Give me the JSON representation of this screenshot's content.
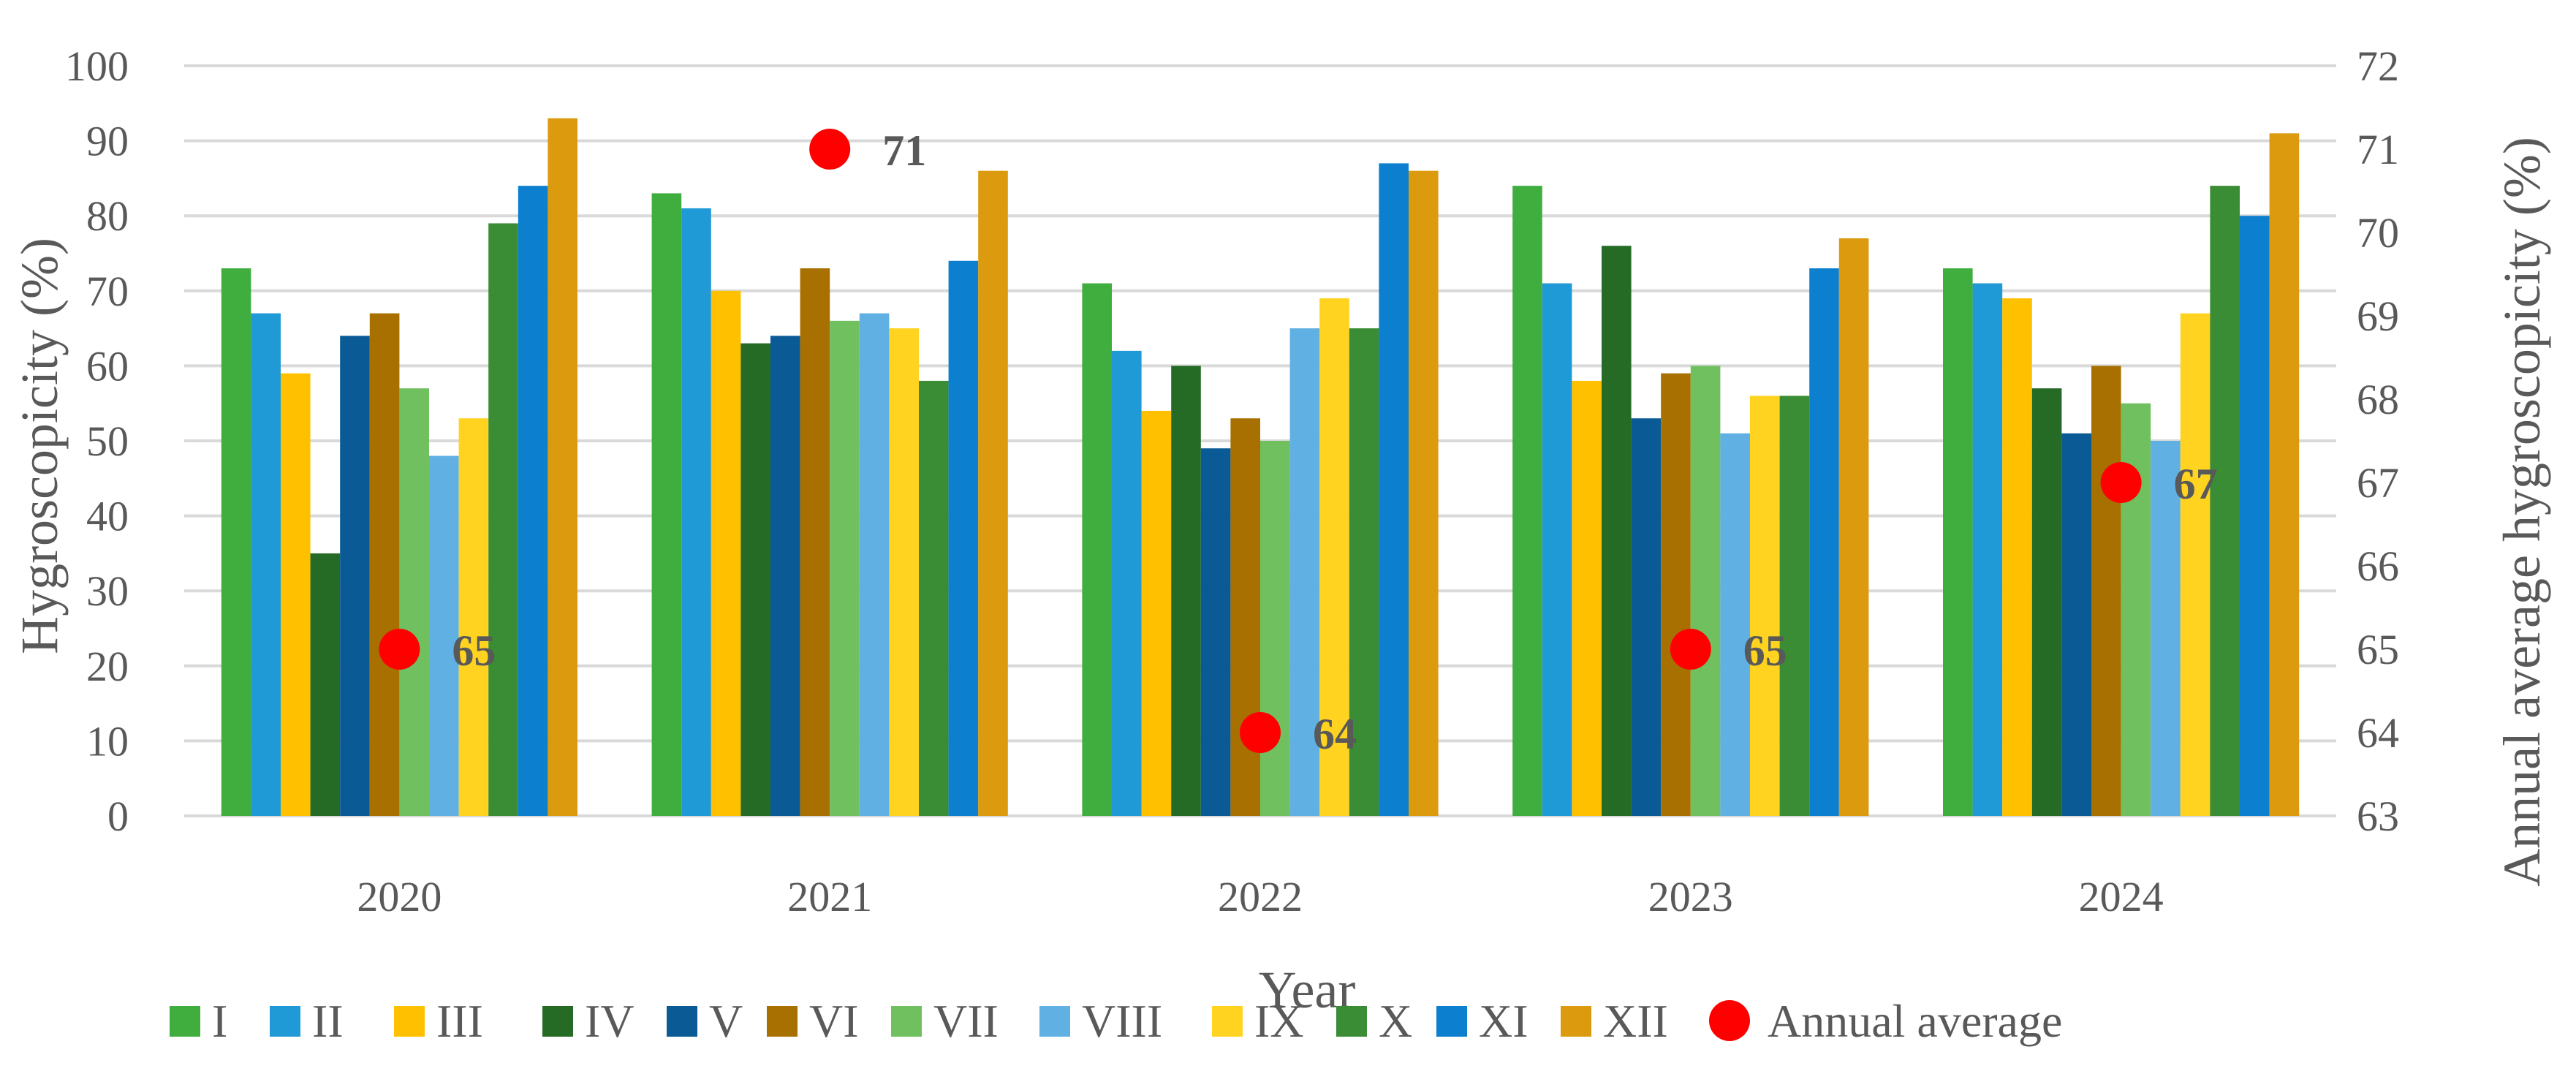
{
  "chart_data": {
    "type": "bar",
    "title": "",
    "xlabel": "Year",
    "ylabel": "Hygroscopicity (%)",
    "y2label": "Annual average hygroscopicity (%)",
    "ylim": [
      0,
      100
    ],
    "y2lim": [
      63,
      72
    ],
    "yticks": [
      "0",
      "10",
      "20",
      "30",
      "40",
      "50",
      "60",
      "70",
      "80",
      "90",
      "100"
    ],
    "y2ticks": [
      "63",
      "64",
      "65",
      "66",
      "67",
      "68",
      "69",
      "70",
      "71",
      "72"
    ],
    "grid": true,
    "legend_position": "bottom",
    "categories": [
      "2020",
      "2021",
      "2022",
      "2023",
      "2024"
    ],
    "series": [
      {
        "name": "I",
        "color": "#3fae3f",
        "values": [
          73,
          83,
          71,
          84,
          73
        ]
      },
      {
        "name": "II",
        "color": "#1f9ad6",
        "values": [
          67,
          81,
          62,
          71,
          71
        ]
      },
      {
        "name": "III",
        "color": "#ffc000",
        "values": [
          59,
          70,
          54,
          58,
          69
        ]
      },
      {
        "name": "IV",
        "color": "#256b25",
        "values": [
          35,
          63,
          60,
          76,
          57
        ]
      },
      {
        "name": "V",
        "color": "#0a5a96",
        "values": [
          64,
          64,
          49,
          53,
          51
        ]
      },
      {
        "name": "VI",
        "color": "#a87000",
        "values": [
          67,
          73,
          53,
          59,
          60
        ]
      },
      {
        "name": "VII",
        "color": "#70c060",
        "values": [
          57,
          66,
          50,
          60,
          55
        ]
      },
      {
        "name": "VIII",
        "color": "#60b0e4",
        "values": [
          48,
          67,
          65,
          51,
          50
        ]
      },
      {
        "name": "IX",
        "color": "#ffd320",
        "values": [
          53,
          65,
          69,
          56,
          67
        ]
      },
      {
        "name": "X",
        "color": "#3a8c35",
        "values": [
          79,
          58,
          65,
          56,
          84
        ]
      },
      {
        "name": "XI",
        "color": "#0c7fcf",
        "values": [
          84,
          74,
          87,
          73,
          80
        ]
      },
      {
        "name": "XII",
        "color": "#dc9a0e",
        "values": [
          93,
          86,
          86,
          77,
          91
        ]
      }
    ],
    "annual_average": {
      "name": "Annual average",
      "axis": "secondary",
      "color": "#ff0000",
      "values": [
        65,
        71,
        64,
        65,
        67
      ],
      "labels": [
        "65",
        "71",
        "64",
        "65",
        "67"
      ]
    }
  }
}
